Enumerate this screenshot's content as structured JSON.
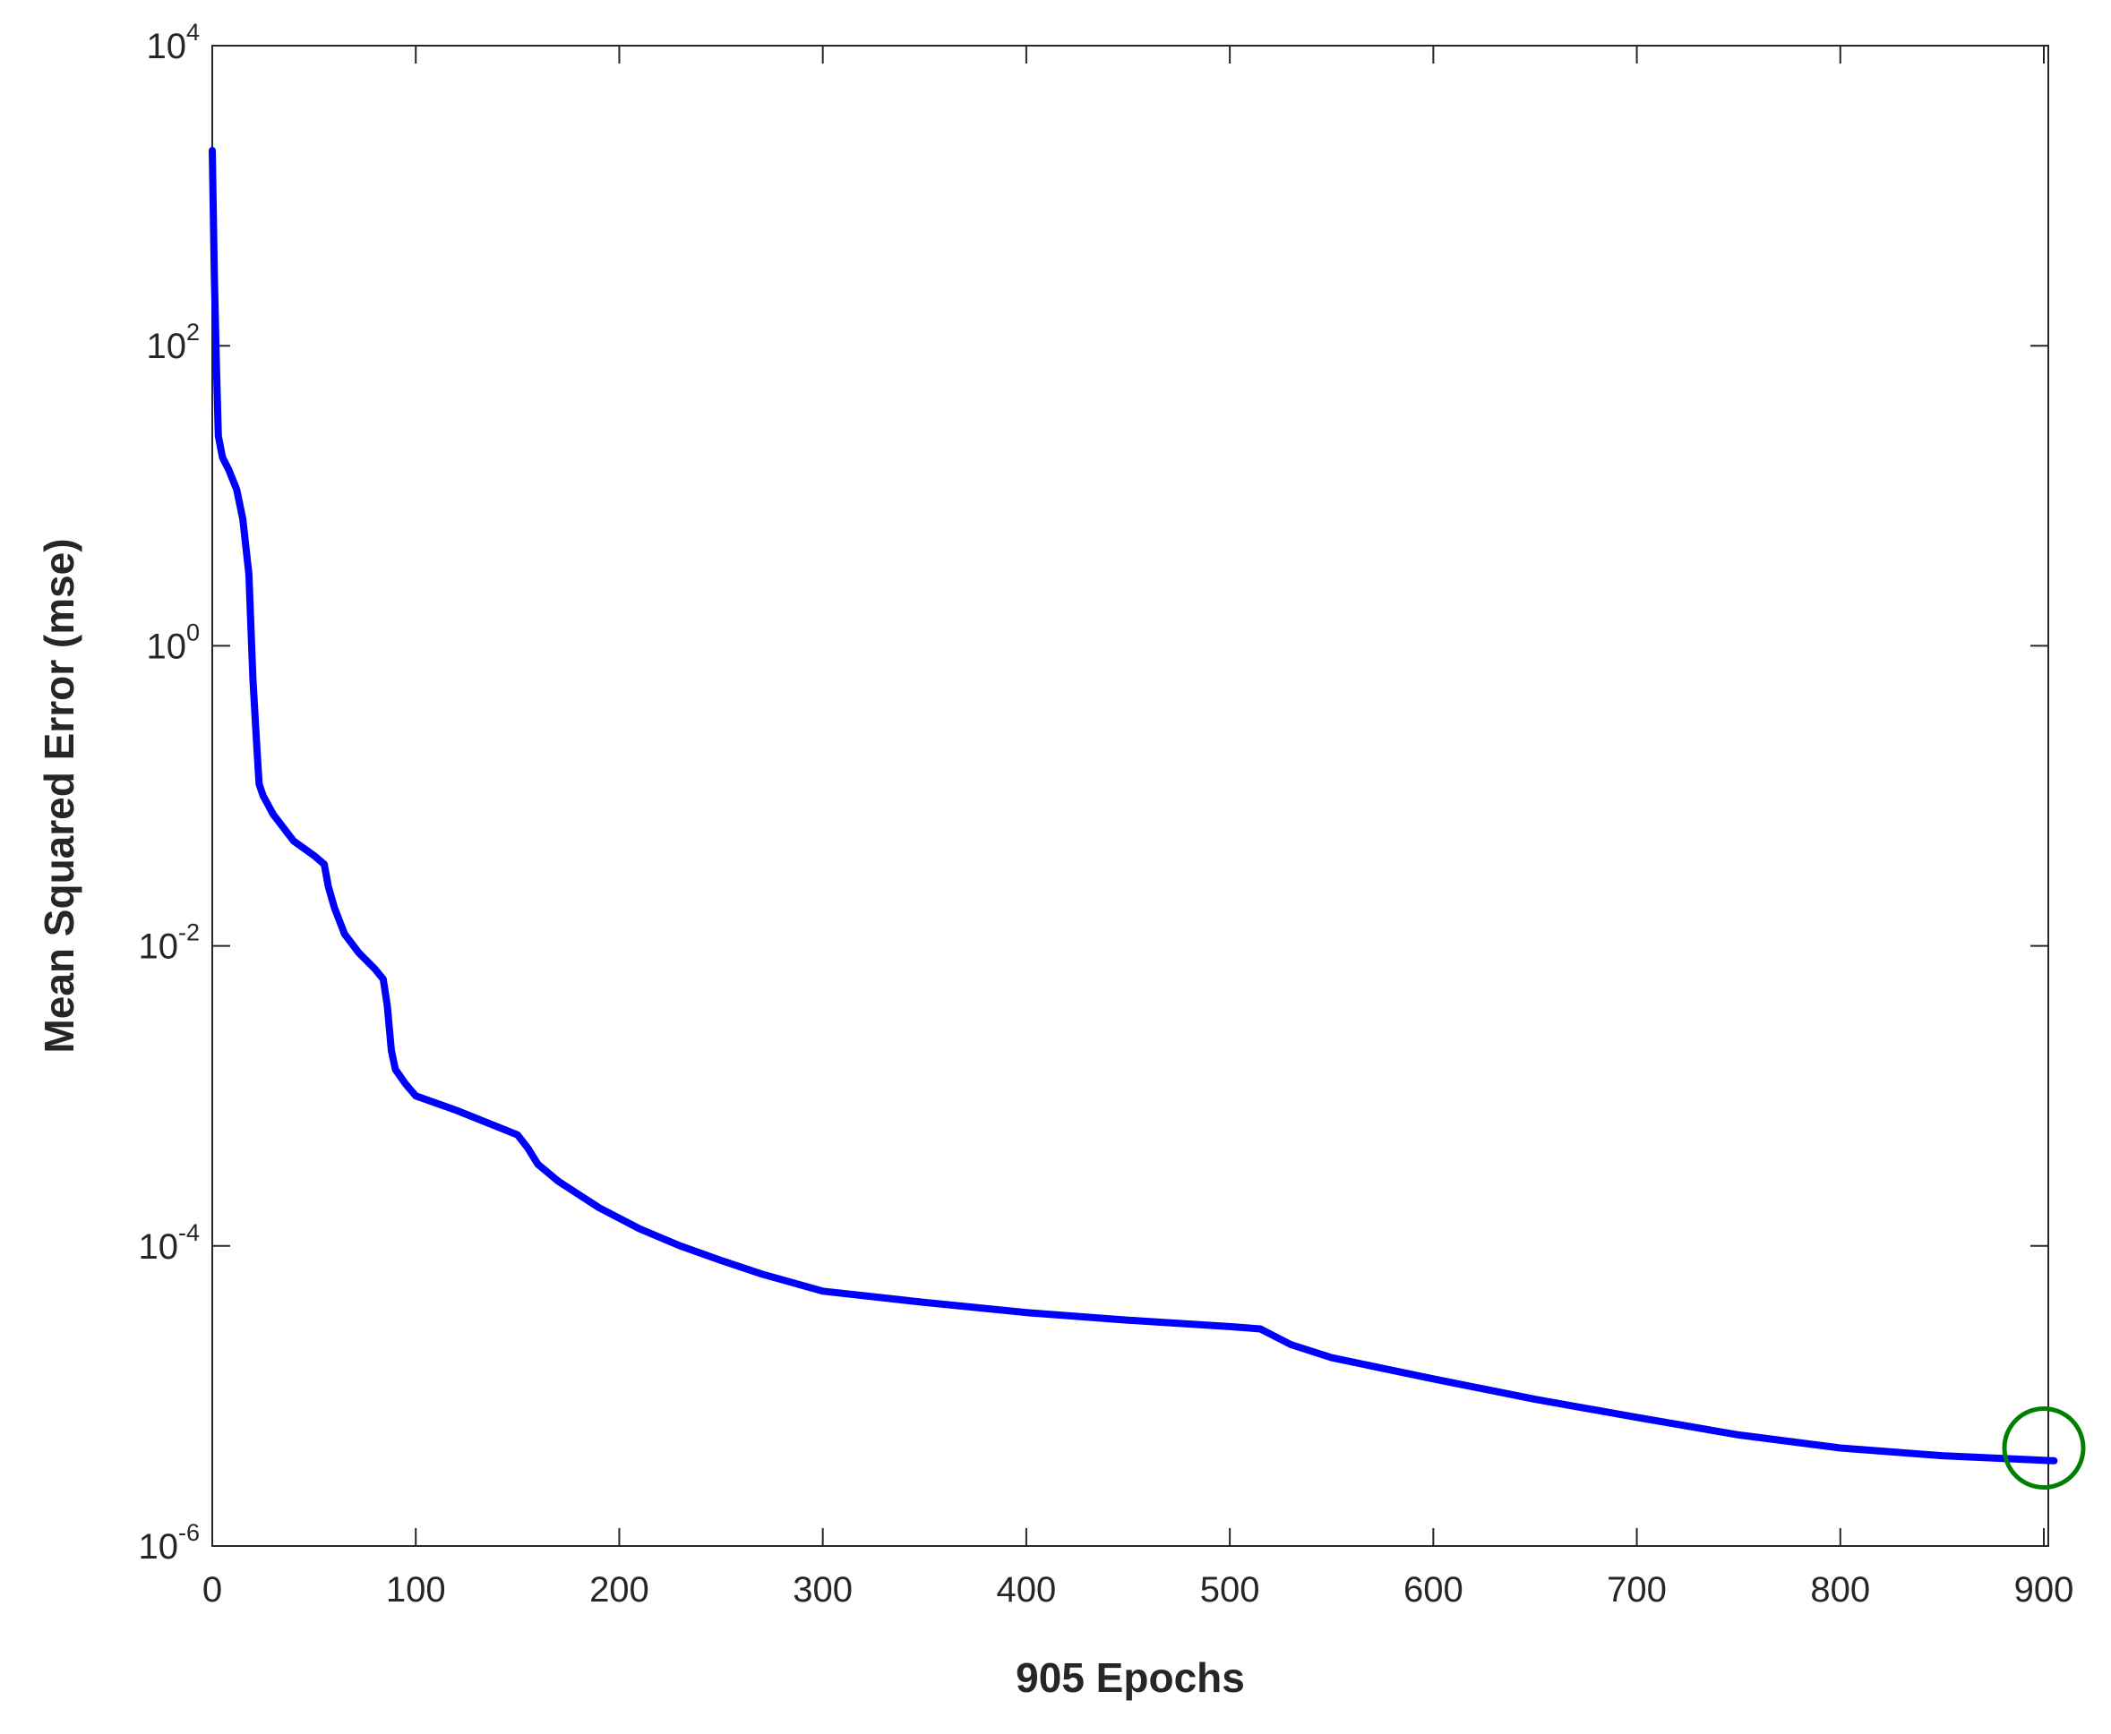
{
  "chart_data": {
    "type": "line",
    "title": "",
    "xlabel": "905 Epochs",
    "ylabel": "Mean Squared Error  (mse)",
    "xlim": [
      0,
      905
    ],
    "ylim": [
      1e-06,
      10000
    ],
    "yscale": "log",
    "grid": false,
    "xticks": [
      0,
      100,
      200,
      300,
      400,
      500,
      600,
      700,
      800,
      900
    ],
    "yticks": [
      {
        "value": 1e-06,
        "base": "10",
        "exp": "-6"
      },
      {
        "value": 0.0001,
        "base": "10",
        "exp": "-4"
      },
      {
        "value": 0.01,
        "base": "10",
        "exp": "-2"
      },
      {
        "value": 1,
        "base": "10",
        "exp": "0"
      },
      {
        "value": 100,
        "base": "10",
        "exp": "2"
      },
      {
        "value": 10000,
        "base": "10",
        "exp": "4"
      }
    ],
    "series": [
      {
        "color": "#0000ff",
        "x": [
          0,
          1,
          2,
          3,
          5,
          8,
          12,
          15,
          18,
          20,
          22,
          23,
          25,
          30,
          40,
          50,
          55,
          57,
          60,
          65,
          72,
          80,
          84,
          86,
          88,
          90,
          95,
          100,
          120,
          150,
          155,
          160,
          170,
          190,
          210,
          230,
          250,
          270,
          300,
          350,
          400,
          450,
          500,
          515,
          530,
          550,
          600,
          650,
          700,
          750,
          800,
          850,
          905
        ],
        "y": [
          2000,
          300,
          80,
          25,
          18,
          15,
          11,
          7,
          3,
          0.6,
          0.2,
          0.12,
          0.1,
          0.075,
          0.05,
          0.04,
          0.035,
          0.025,
          0.018,
          0.012,
          0.009,
          0.007,
          0.006,
          0.004,
          0.002,
          0.0015,
          0.0012,
          0.001,
          0.0008,
          0.00055,
          0.00045,
          0.00035,
          0.00027,
          0.00018,
          0.00013,
          0.0001,
          8e-05,
          6.5e-05,
          5e-05,
          4.2e-05,
          3.6e-05,
          3.2e-05,
          2.9e-05,
          2.8e-05,
          2.2e-05,
          1.8e-05,
          1.3e-05,
          9.5e-06,
          7.2e-06,
          5.5e-06,
          4.5e-06,
          4e-06,
          3.7e-06
        ]
      }
    ],
    "marker": {
      "x": 900,
      "y": 4.5e-06,
      "shape": "circle",
      "color": "#008000"
    }
  }
}
